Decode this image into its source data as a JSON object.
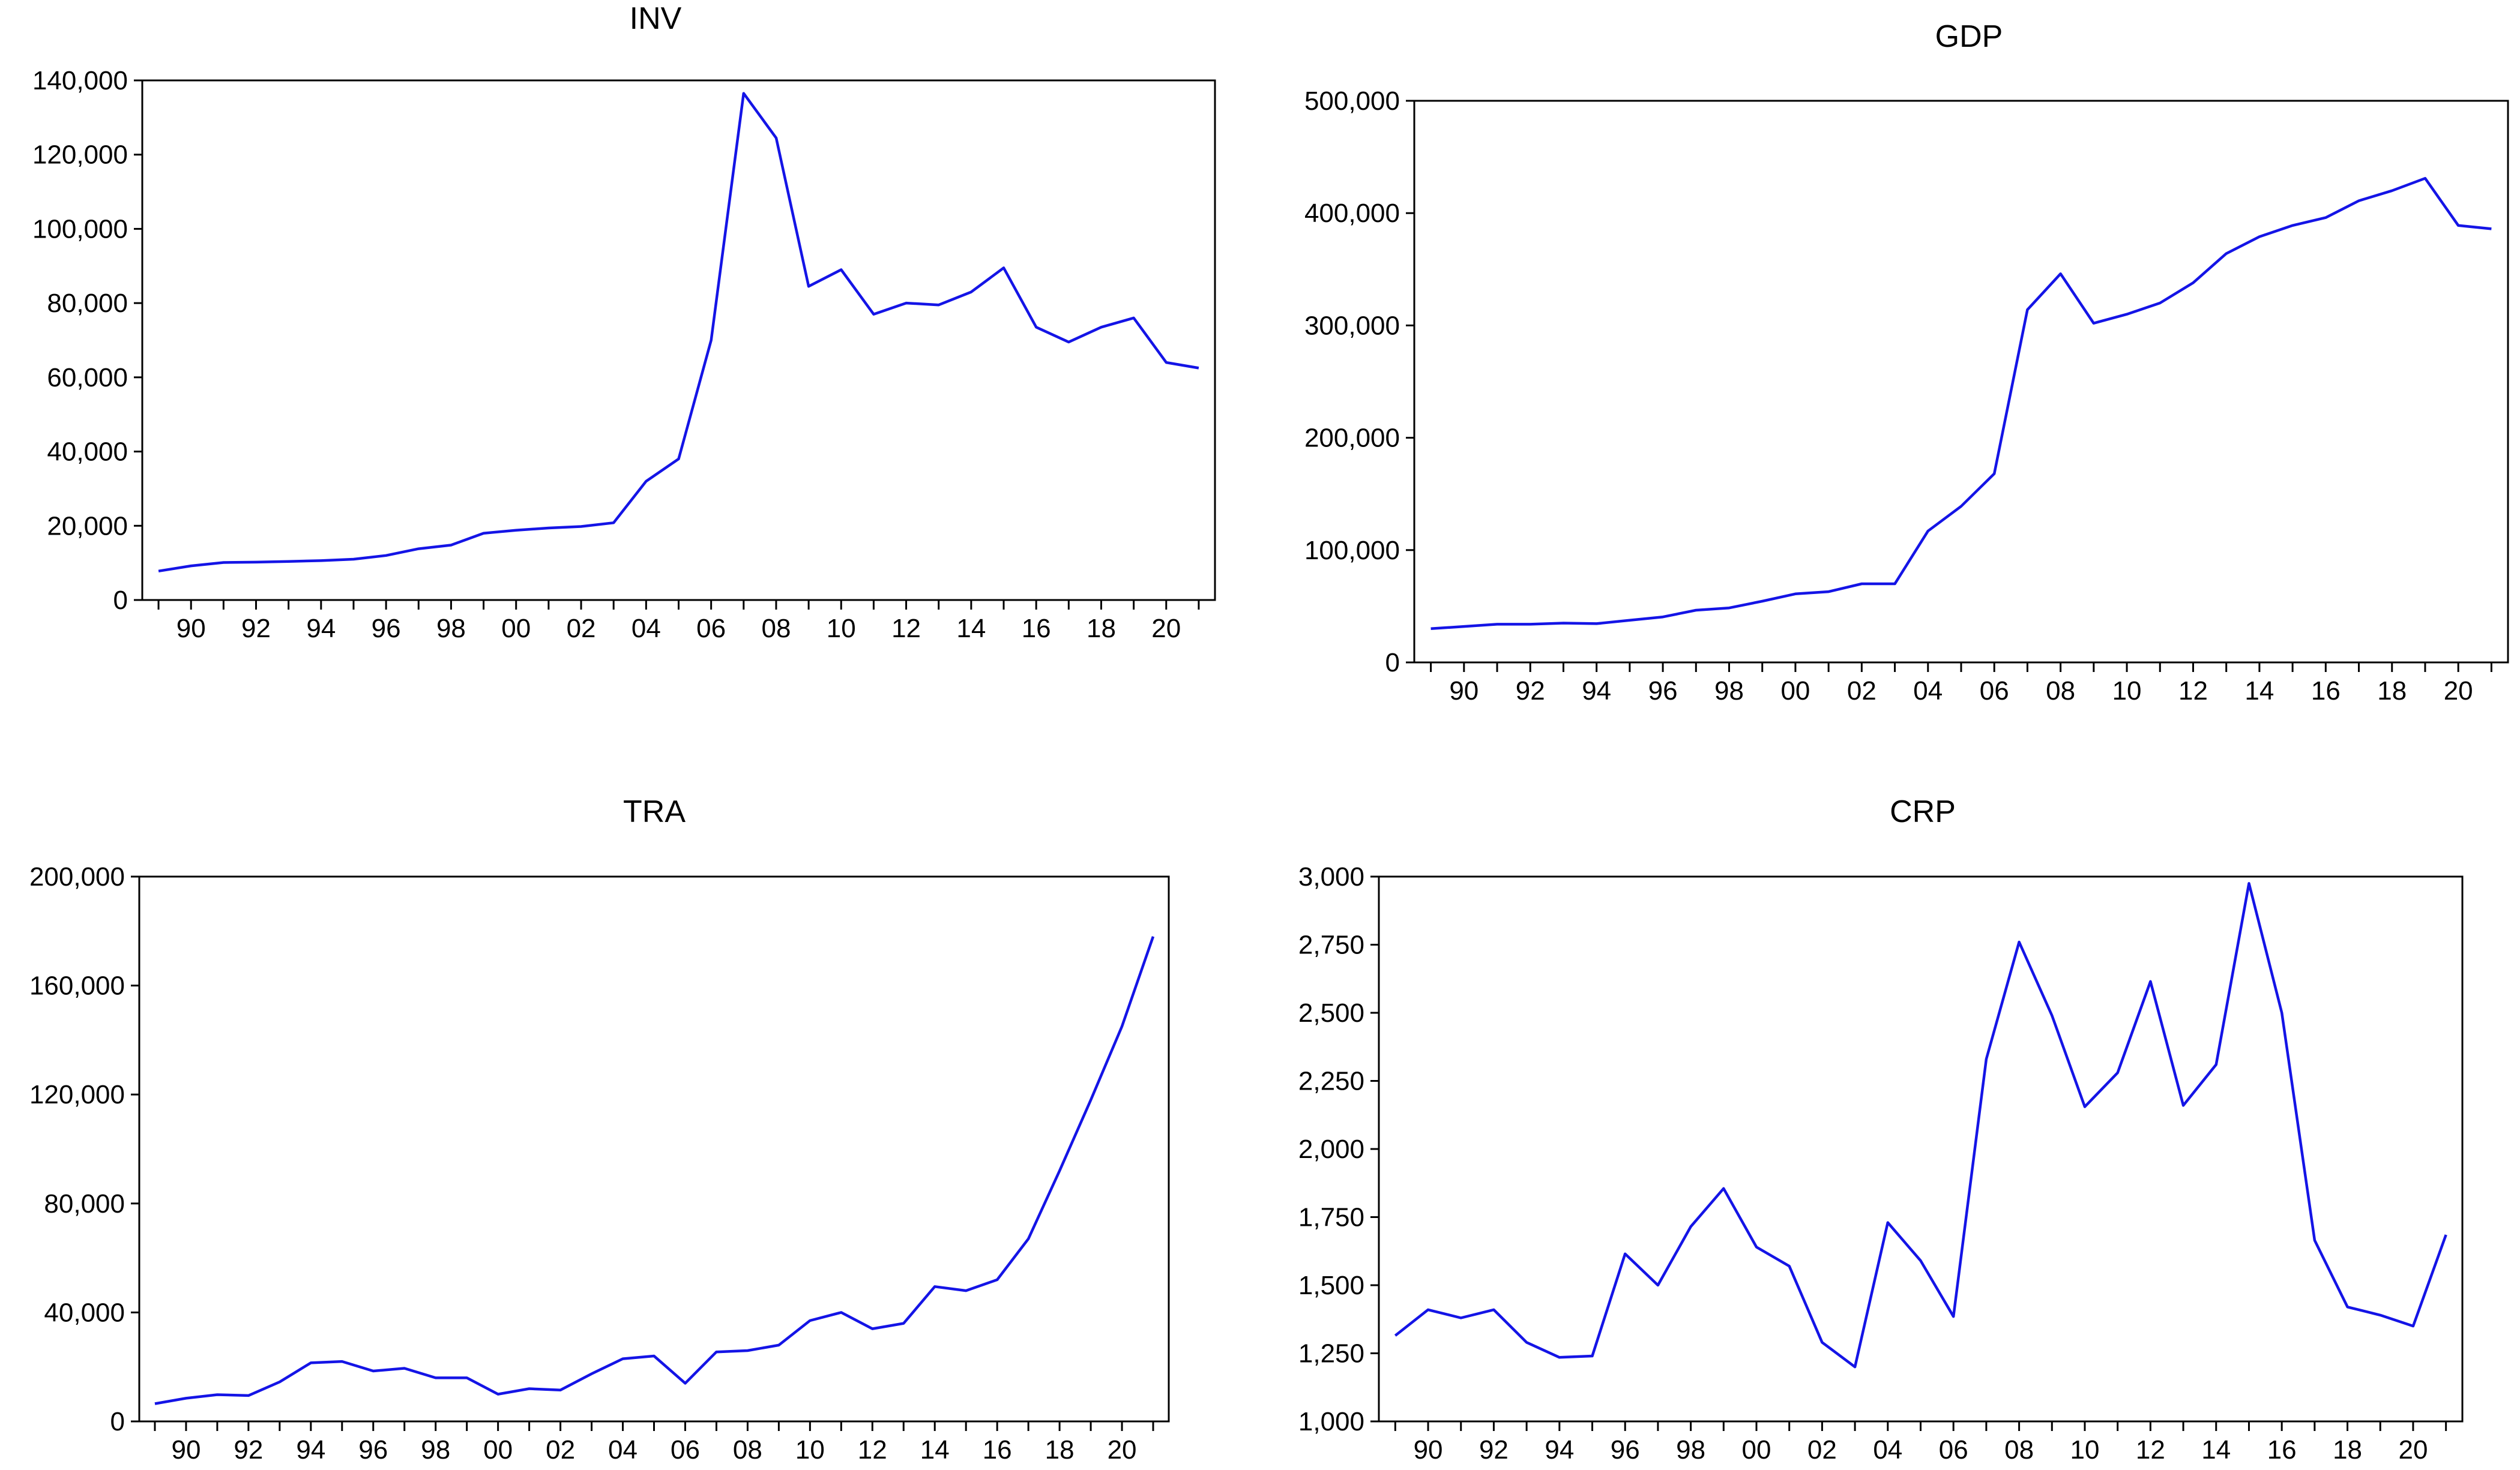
{
  "colors": {
    "series": "#1414E6",
    "axis": "#000000",
    "background": "#FFFFFF"
  },
  "x_tick_labels": [
    "90",
    "92",
    "94",
    "96",
    "98",
    "00",
    "02",
    "04",
    "06",
    "08",
    "10",
    "12",
    "14",
    "16",
    "18",
    "20"
  ],
  "chart_data": [
    {
      "type": "line",
      "title": "INV",
      "xlabel": "",
      "ylabel": "",
      "x": [
        1989,
        1990,
        1991,
        1992,
        1993,
        1994,
        1995,
        1996,
        1997,
        1998,
        1999,
        2000,
        2001,
        2002,
        2003,
        2004,
        2005,
        2006,
        2007,
        2008,
        2009,
        2010,
        2011,
        2012,
        2013,
        2014,
        2015,
        2016,
        2017,
        2018,
        2019,
        2020,
        2021
      ],
      "xlim": [
        1988.5,
        2021.5
      ],
      "ylim": [
        0,
        140000
      ],
      "y_ticks": [
        0,
        20000,
        40000,
        60000,
        80000,
        100000,
        120000,
        140000
      ],
      "y_tick_labels": [
        "0",
        "20,000",
        "40,000",
        "60,000",
        "80,000",
        "100,000",
        "120,000",
        "140,000"
      ],
      "series": [
        {
          "name": "INV",
          "values": [
            7800,
            9200,
            10100,
            10200,
            10400,
            10600,
            11000,
            12000,
            13800,
            14800,
            18000,
            18800,
            19400,
            19800,
            20800,
            32000,
            38000,
            70000,
            136500,
            124500,
            84500,
            89000,
            77000,
            80000,
            79500,
            83000,
            89500,
            73500,
            69500,
            73500,
            76000,
            64000,
            62500
          ]
        }
      ]
    },
    {
      "type": "line",
      "title": "GDP",
      "xlabel": "",
      "ylabel": "",
      "x": [
        1989,
        1990,
        1991,
        1992,
        1993,
        1994,
        1995,
        1996,
        1997,
        1998,
        1999,
        2000,
        2001,
        2002,
        2003,
        2004,
        2005,
        2006,
        2007,
        2008,
        2009,
        2010,
        2011,
        2012,
        2013,
        2014,
        2015,
        2016,
        2017,
        2018,
        2019,
        2020,
        2021
      ],
      "xlim": [
        1988.5,
        2021.5
      ],
      "ylim": [
        0,
        500000
      ],
      "y_ticks": [
        0,
        100000,
        200000,
        300000,
        400000,
        500000
      ],
      "y_tick_labels": [
        "0",
        "100,000",
        "200,000",
        "300,000",
        "400,000",
        "500,000"
      ],
      "series": [
        {
          "name": "GDP",
          "values": [
            30000,
            32000,
            34000,
            34000,
            35000,
            34500,
            37500,
            40500,
            46500,
            48500,
            54500,
            61000,
            63000,
            70000,
            70000,
            117000,
            139000,
            168000,
            314000,
            346000,
            302000,
            310000,
            320000,
            338000,
            364000,
            379000,
            389000,
            396000,
            411000,
            420000,
            431000,
            389000,
            386000
          ]
        }
      ]
    },
    {
      "type": "line",
      "title": "TRA",
      "xlabel": "",
      "ylabel": "",
      "x": [
        1989,
        1990,
        1991,
        1992,
        1993,
        1994,
        1995,
        1996,
        1997,
        1998,
        1999,
        2000,
        2001,
        2002,
        2003,
        2004,
        2005,
        2006,
        2007,
        2008,
        2009,
        2010,
        2011,
        2012,
        2013,
        2014,
        2015,
        2016,
        2017,
        2018,
        2019,
        2020,
        2021
      ],
      "xlim": [
        1988.5,
        2021.5
      ],
      "ylim": [
        0,
        200000
      ],
      "y_ticks": [
        0,
        40000,
        80000,
        120000,
        160000,
        200000
      ],
      "y_tick_labels": [
        "0",
        "40,000",
        "80,000",
        "120,000",
        "160,000",
        "200,000"
      ],
      "series": [
        {
          "name": "TRA",
          "values": [
            6500,
            8500,
            9800,
            9500,
            14500,
            21500,
            22000,
            18500,
            19500,
            16000,
            16000,
            10000,
            12000,
            11500,
            17500,
            23000,
            24000,
            14000,
            25500,
            26000,
            28000,
            37000,
            40000,
            34000,
            36000,
            49500,
            48000,
            52000,
            67000,
            92000,
            118000,
            145000,
            178000
          ]
        }
      ]
    },
    {
      "type": "line",
      "title": "CRP",
      "xlabel": "",
      "ylabel": "",
      "x": [
        1989,
        1990,
        1991,
        1992,
        1993,
        1994,
        1995,
        1996,
        1997,
        1998,
        1999,
        2000,
        2001,
        2002,
        2003,
        2004,
        2005,
        2006,
        2007,
        2008,
        2009,
        2010,
        2011,
        2012,
        2013,
        2014,
        2015,
        2016,
        2017,
        2018,
        2019,
        2020,
        2021
      ],
      "xlim": [
        1988.5,
        2021.5
      ],
      "ylim": [
        1000,
        3000
      ],
      "y_ticks": [
        1000,
        1250,
        1500,
        1750,
        2000,
        2250,
        2500,
        2750,
        3000
      ],
      "y_tick_labels": [
        "1,000",
        "1,250",
        "1,500",
        "1,750",
        "2,000",
        "2,250",
        "2,500",
        "2,750",
        "3,000"
      ],
      "series": [
        {
          "name": "CRP",
          "values": [
            1315,
            1410,
            1380,
            1410,
            1290,
            1235,
            1240,
            1615,
            1500,
            1715,
            1855,
            1640,
            1570,
            1290,
            1200,
            1730,
            1590,
            1385,
            2330,
            2760,
            2490,
            2155,
            2280,
            2615,
            2160,
            2310,
            2975,
            2500,
            1665,
            1420,
            1390,
            1350,
            1685
          ]
        }
      ]
    }
  ]
}
